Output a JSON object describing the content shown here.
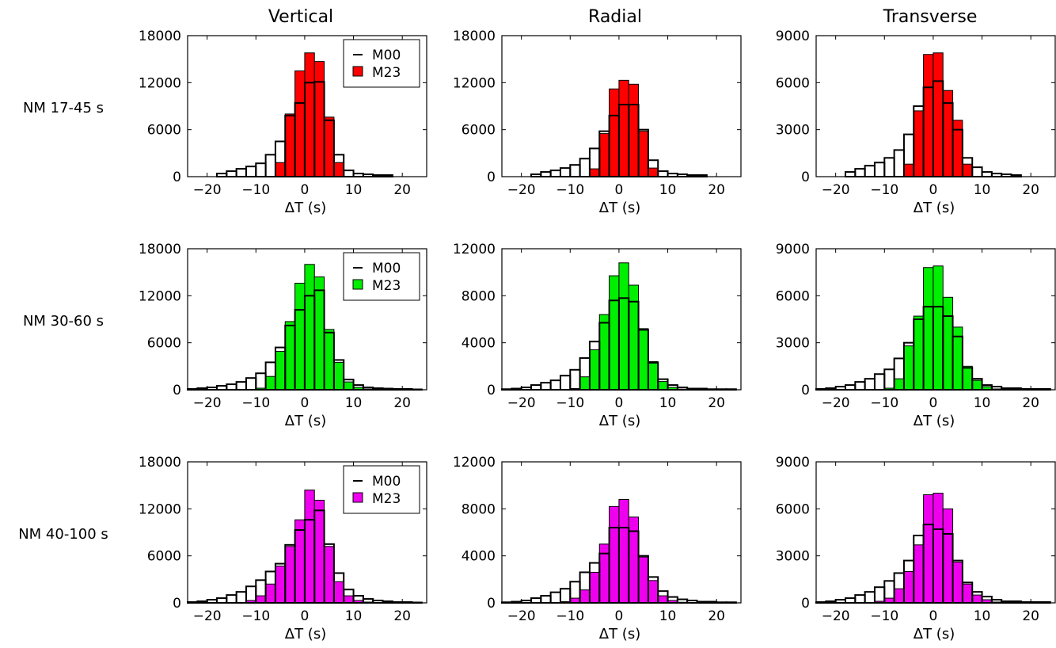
{
  "colors": {
    "M23_row1": "#ff0000",
    "M23_row2": "#00ee00",
    "M23_row3": "#ee00ee",
    "M00": "#ffffff",
    "outline": "#000000"
  },
  "column_titles": [
    "Vertical",
    "Radial",
    "Transverse"
  ],
  "row_labels": [
    "NM 17-45 s",
    "NM 30-60 s",
    "NM 40-100 s"
  ],
  "legend": {
    "m00": "M00",
    "m23": "M23"
  },
  "chart_data": [
    {
      "type": "bar",
      "row": 0,
      "col": 0,
      "xlabel": "ΔT (s)",
      "xlim": [
        -24,
        25
      ],
      "ylim": [
        0,
        18000
      ],
      "xticks": [
        "−20",
        "−10",
        "0",
        "10",
        "20"
      ],
      "yticks": [
        "0",
        "6000",
        "12000",
        "18000"
      ],
      "x": [
        -17,
        -15,
        -13,
        -11,
        -9,
        -7,
        -5,
        -3,
        -1,
        1,
        3,
        5,
        7,
        9,
        11,
        13,
        15,
        17
      ],
      "series": [
        {
          "name": "M00",
          "values": [
            400,
            700,
            1000,
            1300,
            1700,
            2800,
            4500,
            7800,
            9400,
            12000,
            12100,
            7200,
            2800,
            800,
            400,
            300,
            200,
            200
          ]
        },
        {
          "name": "M23",
          "values": [
            0,
            0,
            0,
            0,
            0,
            0,
            1800,
            8000,
            13500,
            15800,
            14700,
            7600,
            1800,
            0,
            0,
            0,
            0,
            0
          ]
        }
      ]
    },
    {
      "type": "bar",
      "row": 0,
      "col": 1,
      "xlabel": "ΔT (s)",
      "xlim": [
        -24,
        25
      ],
      "ylim": [
        0,
        18000
      ],
      "xticks": [
        "−20",
        "−10",
        "0",
        "10",
        "20"
      ],
      "yticks": [
        "0",
        "6000",
        "12000",
        "18000"
      ],
      "x": [
        -17,
        -15,
        -13,
        -11,
        -9,
        -7,
        -5,
        -3,
        -1,
        1,
        3,
        5,
        7,
        9,
        11,
        13,
        15,
        17
      ],
      "series": [
        {
          "name": "M00",
          "values": [
            300,
            600,
            800,
            1100,
            1500,
            2300,
            3600,
            5800,
            7800,
            9200,
            9200,
            6000,
            2100,
            700,
            400,
            300,
            200,
            200
          ]
        },
        {
          "name": "M23",
          "values": [
            0,
            0,
            0,
            0,
            0,
            0,
            1000,
            5500,
            11200,
            12300,
            11800,
            5800,
            1100,
            0,
            0,
            0,
            0,
            0
          ]
        }
      ]
    },
    {
      "type": "bar",
      "row": 0,
      "col": 2,
      "xlabel": "ΔT (s)",
      "xlim": [
        -24,
        25
      ],
      "ylim": [
        0,
        9000
      ],
      "xticks": [
        "−20",
        "−10",
        "0",
        "10",
        "20"
      ],
      "yticks": [
        "0",
        "3000",
        "6000",
        "9000"
      ],
      "x": [
        -17,
        -15,
        -13,
        -11,
        -9,
        -7,
        -5,
        -3,
        -1,
        1,
        3,
        5,
        7,
        9,
        11,
        13,
        15,
        17
      ],
      "series": [
        {
          "name": "M00",
          "values": [
            300,
            500,
            700,
            900,
            1200,
            1700,
            2700,
            4500,
            5700,
            6100,
            4700,
            3000,
            1200,
            600,
            300,
            200,
            150,
            100
          ]
        },
        {
          "name": "M23",
          "values": [
            0,
            0,
            0,
            0,
            0,
            0,
            800,
            4200,
            7800,
            7900,
            5500,
            3600,
            800,
            0,
            0,
            0,
            0,
            0
          ]
        }
      ]
    },
    {
      "type": "bar",
      "row": 1,
      "col": 0,
      "xlabel": "ΔT (s)",
      "xlim": [
        -24,
        25
      ],
      "ylim": [
        0,
        18000
      ],
      "xticks": [
        "−20",
        "−10",
        "0",
        "10",
        "20"
      ],
      "yticks": [
        "0",
        "6000",
        "12000",
        "18000"
      ],
      "x": [
        -23,
        -21,
        -19,
        -17,
        -15,
        -13,
        -11,
        -9,
        -7,
        -5,
        -3,
        -1,
        1,
        3,
        5,
        7,
        9,
        11,
        13,
        15,
        17,
        19,
        21,
        23
      ],
      "series": [
        {
          "name": "M00",
          "values": [
            100,
            200,
            300,
            500,
            700,
            1000,
            1500,
            2100,
            3500,
            5400,
            8200,
            10200,
            12000,
            12700,
            7300,
            3800,
            1300,
            600,
            300,
            200,
            150,
            100,
            100,
            50
          ]
        },
        {
          "name": "M23",
          "values": [
            0,
            0,
            0,
            0,
            0,
            0,
            0,
            200,
            1700,
            4900,
            8700,
            13600,
            16000,
            14400,
            7700,
            3500,
            1000,
            300,
            100,
            0,
            0,
            0,
            0,
            0
          ]
        }
      ]
    },
    {
      "type": "bar",
      "row": 1,
      "col": 1,
      "xlabel": "ΔT (s)",
      "xlim": [
        -24,
        25
      ],
      "ylim": [
        0,
        12000
      ],
      "xticks": [
        "−20",
        "−10",
        "0",
        "10",
        "20"
      ],
      "yticks": [
        "0",
        "4000",
        "8000",
        "12000"
      ],
      "x": [
        -23,
        -21,
        -19,
        -17,
        -15,
        -13,
        -11,
        -9,
        -7,
        -5,
        -3,
        -1,
        1,
        3,
        5,
        7,
        9,
        11,
        13,
        15,
        17,
        19,
        21,
        23
      ],
      "series": [
        {
          "name": "M00",
          "values": [
            50,
            100,
            200,
            400,
            600,
            800,
            1200,
            1700,
            2700,
            4100,
            5700,
            7600,
            7800,
            7500,
            5100,
            2300,
            900,
            400,
            200,
            100,
            100,
            50,
            50,
            50
          ]
        },
        {
          "name": "M23",
          "values": [
            0,
            0,
            0,
            0,
            0,
            0,
            0,
            100,
            1100,
            3400,
            6400,
            9700,
            10800,
            8900,
            5200,
            2400,
            700,
            200,
            50,
            0,
            0,
            0,
            0,
            0
          ]
        }
      ]
    },
    {
      "type": "bar",
      "row": 1,
      "col": 2,
      "xlabel": "ΔT (s)",
      "xlim": [
        -24,
        25
      ],
      "ylim": [
        0,
        9000
      ],
      "xticks": [
        "−20",
        "−10",
        "0",
        "10",
        "20"
      ],
      "yticks": [
        "0",
        "3000",
        "6000",
        "9000"
      ],
      "x": [
        -23,
        -21,
        -19,
        -17,
        -15,
        -13,
        -11,
        -9,
        -7,
        -5,
        -3,
        -1,
        1,
        3,
        5,
        7,
        9,
        11,
        13,
        15,
        17,
        19,
        21,
        23
      ],
      "series": [
        {
          "name": "M00",
          "values": [
            50,
            100,
            200,
            300,
            500,
            700,
            1000,
            1300,
            2000,
            3000,
            4500,
            5300,
            5300,
            4700,
            3400,
            1400,
            700,
            300,
            200,
            100,
            100,
            50,
            50,
            50
          ]
        },
        {
          "name": "M23",
          "values": [
            0,
            0,
            0,
            0,
            0,
            0,
            0,
            100,
            700,
            2800,
            4700,
            7800,
            7900,
            5900,
            4000,
            1500,
            600,
            200,
            50,
            0,
            0,
            0,
            0,
            0
          ]
        }
      ]
    },
    {
      "type": "bar",
      "row": 2,
      "col": 0,
      "xlabel": "ΔT (s)",
      "xlim": [
        -24,
        25
      ],
      "ylim": [
        0,
        18000
      ],
      "xticks": [
        "−20",
        "−10",
        "0",
        "10",
        "20"
      ],
      "yticks": [
        "0",
        "6000",
        "12000",
        "18000"
      ],
      "x": [
        -23,
        -21,
        -19,
        -17,
        -15,
        -13,
        -11,
        -9,
        -7,
        -5,
        -3,
        -1,
        1,
        3,
        5,
        7,
        9,
        11,
        13,
        15,
        17,
        19,
        21,
        23
      ],
      "series": [
        {
          "name": "M00",
          "values": [
            100,
            200,
            400,
            600,
            1000,
            1400,
            2100,
            2900,
            4000,
            5000,
            7400,
            9300,
            10600,
            11800,
            7500,
            3800,
            1700,
            900,
            500,
            300,
            200,
            100,
            100,
            50
          ]
        },
        {
          "name": "M23",
          "values": [
            0,
            0,
            0,
            0,
            0,
            0,
            300,
            900,
            2400,
            4700,
            7200,
            10600,
            14400,
            13100,
            7200,
            2700,
            900,
            300,
            100,
            0,
            0,
            0,
            0,
            0
          ]
        }
      ]
    },
    {
      "type": "bar",
      "row": 2,
      "col": 1,
      "xlabel": "ΔT (s)",
      "xlim": [
        -24,
        25
      ],
      "ylim": [
        0,
        12000
      ],
      "xticks": [
        "−20",
        "−10",
        "0",
        "10",
        "20"
      ],
      "yticks": [
        "0",
        "4000",
        "8000",
        "12000"
      ],
      "x": [
        -23,
        -21,
        -19,
        -17,
        -15,
        -13,
        -11,
        -9,
        -7,
        -5,
        -3,
        -1,
        1,
        3,
        5,
        7,
        9,
        11,
        13,
        15,
        17,
        19,
        21,
        23
      ],
      "series": [
        {
          "name": "M00",
          "values": [
            50,
            100,
            200,
            400,
            600,
            900,
            1200,
            1800,
            2600,
            3400,
            4200,
            6400,
            6400,
            6100,
            4000,
            2200,
            1000,
            500,
            300,
            200,
            100,
            100,
            50,
            50
          ]
        },
        {
          "name": "M23",
          "values": [
            0,
            0,
            0,
            0,
            0,
            0,
            100,
            400,
            1100,
            2600,
            5000,
            8200,
            8800,
            7300,
            3900,
            1900,
            600,
            200,
            50,
            0,
            0,
            0,
            0,
            0
          ]
        }
      ]
    },
    {
      "type": "bar",
      "row": 2,
      "col": 2,
      "xlabel": "ΔT (s)",
      "xlim": [
        -24,
        25
      ],
      "ylim": [
        0,
        9000
      ],
      "xticks": [
        "−20",
        "−10",
        "0",
        "10",
        "20"
      ],
      "yticks": [
        "0",
        "3000",
        "6000",
        "9000"
      ],
      "x": [
        -23,
        -21,
        -19,
        -17,
        -15,
        -13,
        -11,
        -9,
        -7,
        -5,
        -3,
        -1,
        1,
        3,
        5,
        7,
        9,
        11,
        13,
        15,
        17,
        19,
        21,
        23
      ],
      "series": [
        {
          "name": "M00",
          "values": [
            50,
            100,
            200,
            300,
            500,
            700,
            1000,
            1400,
            1900,
            2700,
            4300,
            5000,
            4700,
            4400,
            2700,
            1300,
            700,
            400,
            200,
            100,
            100,
            50,
            50,
            50
          ]
        },
        {
          "name": "M23",
          "values": [
            0,
            0,
            0,
            0,
            0,
            0,
            100,
            300,
            900,
            2000,
            3700,
            6900,
            7000,
            6000,
            2600,
            1200,
            500,
            200,
            50,
            0,
            0,
            0,
            0,
            0
          ]
        }
      ]
    }
  ]
}
